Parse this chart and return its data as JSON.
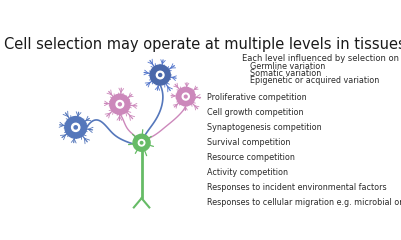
{
  "title": "Cell selection may operate at multiple levels in tissues",
  "title_fontsize": 10.5,
  "title_color": "#1a1a1a",
  "background_color": "#ffffff",
  "subtitle": "Each level influenced by selection on the basis of:",
  "subtitle_fontsize": 6.0,
  "indented_items": [
    "Germline variation",
    "Somatic variation",
    "Epigenetic or acquired variation"
  ],
  "indented_fontsize": 5.8,
  "list_items": [
    "Proliferative competition",
    "Cell growth competition",
    "Synaptogenesis competition",
    "Survival competition",
    "Resource competition",
    "Activity competition",
    "Responses to incident environmental factors",
    "Responses to cellular migration e.g. microbial or inflammatory"
  ],
  "list_fontsize": 5.8,
  "text_color": "#2a2a2a",
  "blue_color": "#5577bb",
  "blue_dark": "#4466aa",
  "pink_color": "#cc88bb",
  "green_color": "#66bb66"
}
